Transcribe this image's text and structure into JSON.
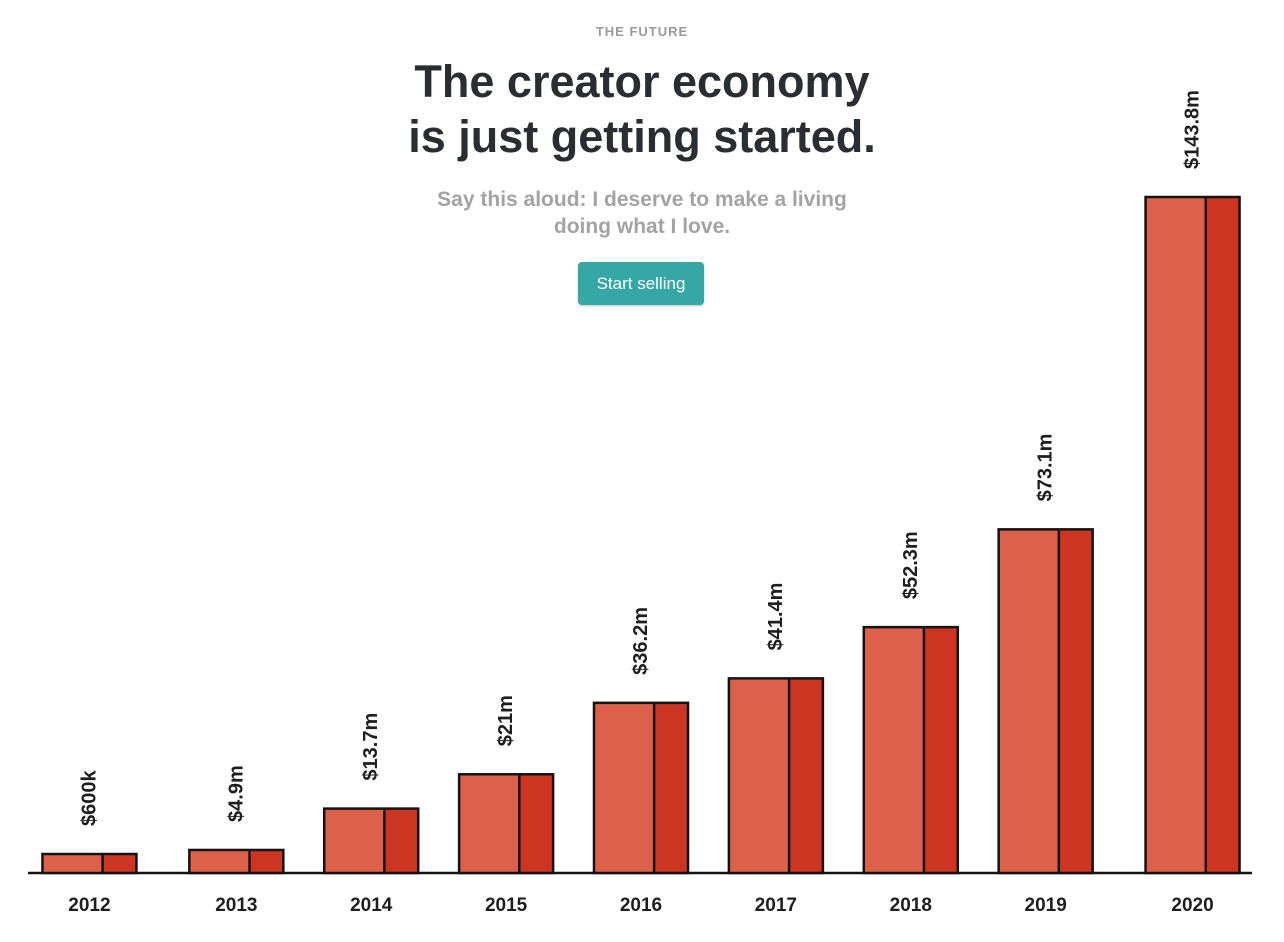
{
  "header": {
    "eyebrow": "THE FUTURE",
    "title_line1": "The creator economy",
    "title_line2": "is just getting started.",
    "subtitle_line1": "Say this aloud: I deserve to make a living",
    "subtitle_line2": "doing what I love.",
    "cta_label": "Start selling"
  },
  "colors": {
    "bar_front": "#dd614a",
    "bar_side": "#cc3522",
    "outline": "#141414",
    "cta": "#35a7a5"
  },
  "chart_data": {
    "type": "bar",
    "categories": [
      "2012",
      "2013",
      "2014",
      "2015",
      "2016",
      "2017",
      "2018",
      "2019",
      "2020"
    ],
    "values": [
      0.6,
      4.9,
      13.7,
      21,
      36.2,
      41.4,
      52.3,
      73.1,
      143.8
    ],
    "value_labels": [
      "$600k",
      "$4.9m",
      "$13.7m",
      "$21m",
      "$36.2m",
      "$41.4m",
      "$52.3m",
      "$73.1m",
      "$143.8m"
    ],
    "ylim": [
      0,
      143.8
    ],
    "grid": false,
    "legend": "none"
  }
}
